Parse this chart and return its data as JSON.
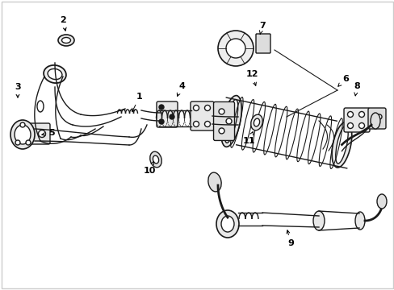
{
  "bg": "#ffffff",
  "lc": "#1a1a1a",
  "lw": 1.0,
  "fig_w": 4.89,
  "fig_h": 3.6,
  "dpi": 100,
  "border_color": "#cccccc",
  "label_fontsize": 8,
  "label_color": "#000000"
}
